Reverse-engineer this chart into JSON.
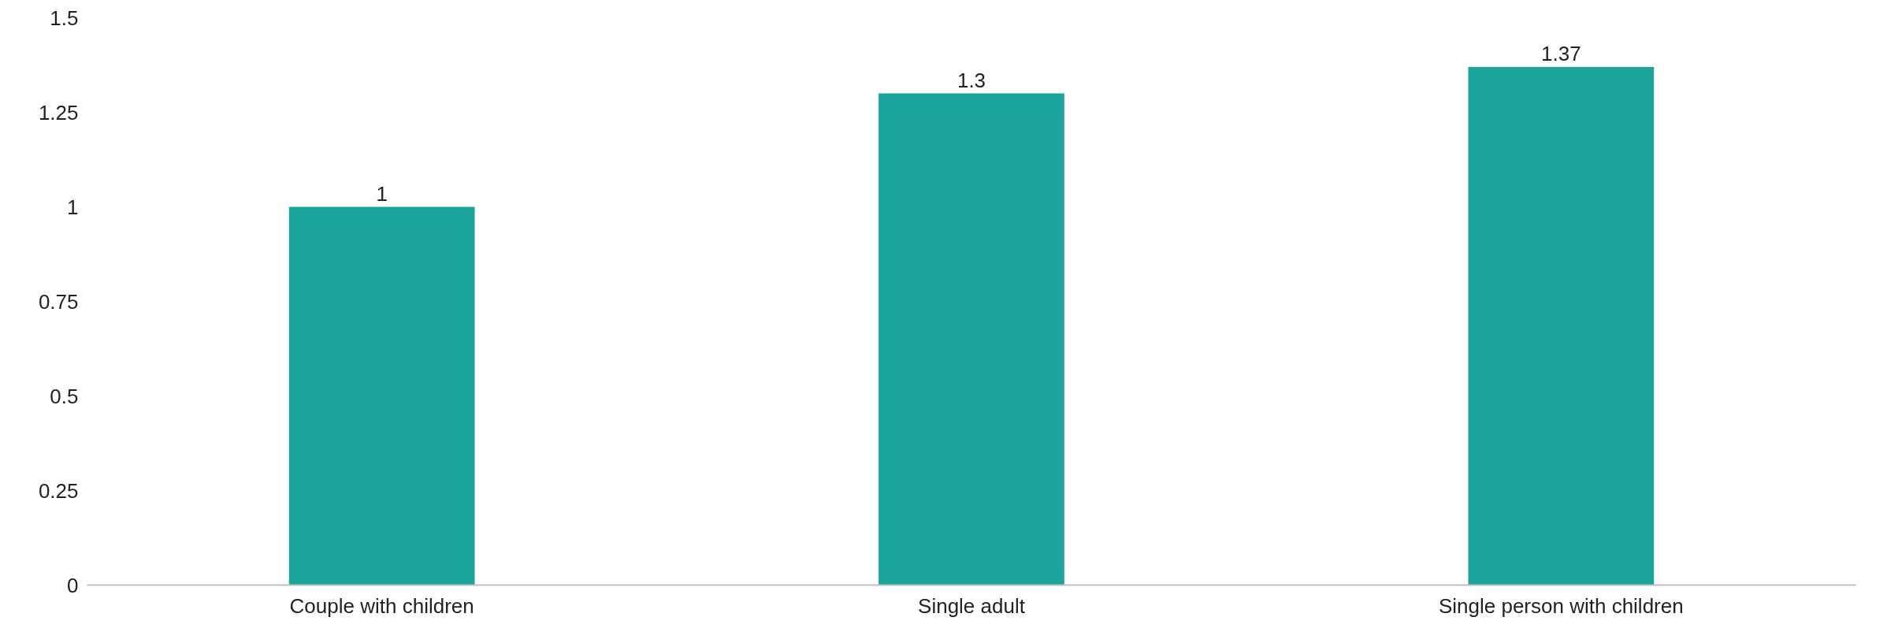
{
  "chart_data": {
    "type": "bar",
    "categories": [
      "Couple with children",
      "Single adult",
      "Single person with children"
    ],
    "values": [
      1,
      1.3,
      1.37
    ],
    "color": "#1ca39b",
    "ylim": [
      0,
      1.5
    ],
    "yticks": [
      0,
      0.25,
      0.5,
      0.75,
      1,
      1.25,
      1.5
    ],
    "data_labels": true,
    "grid": false
  }
}
